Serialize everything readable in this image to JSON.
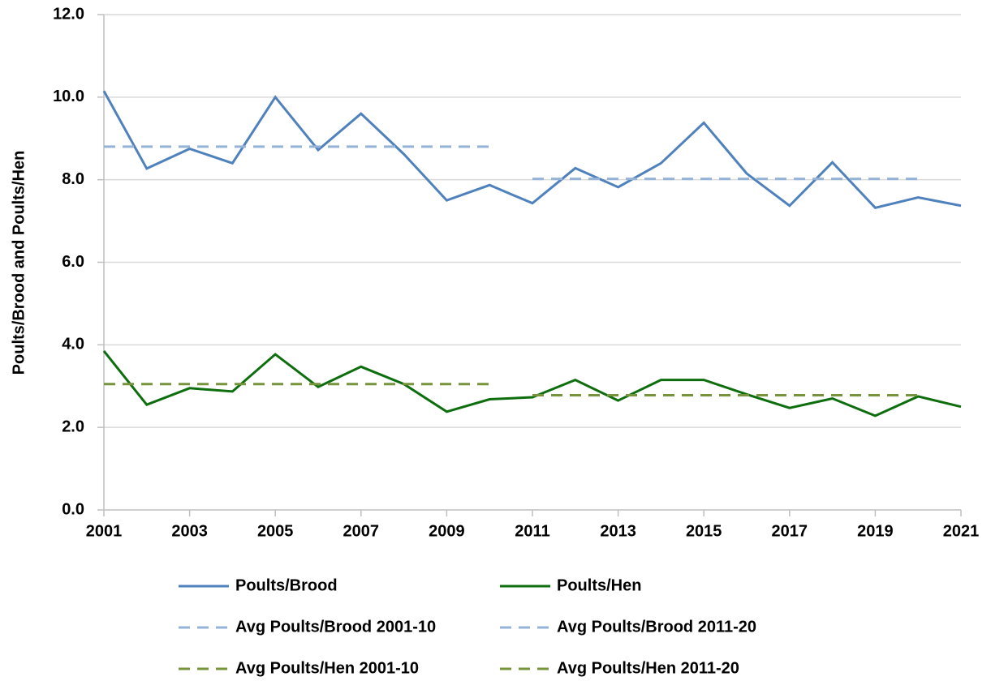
{
  "chart_data": {
    "type": "line",
    "y_label": "Poults/Brood and Poults/Hen",
    "x": [
      2001,
      2002,
      2003,
      2004,
      2005,
      2006,
      2007,
      2008,
      2009,
      2010,
      2011,
      2012,
      2013,
      2014,
      2015,
      2016,
      2017,
      2018,
      2019,
      2020,
      2021
    ],
    "xlim": [
      2001,
      2021
    ],
    "xticks": [
      2001,
      2003,
      2005,
      2007,
      2009,
      2011,
      2013,
      2015,
      2017,
      2019,
      2021
    ],
    "ylim": [
      0,
      12
    ],
    "yticks": [
      {
        "value": 0,
        "label": "0.0"
      },
      {
        "value": 2,
        "label": "2.0"
      },
      {
        "value": 4,
        "label": "4.0"
      },
      {
        "value": 6,
        "label": "6.0"
      },
      {
        "value": 8,
        "label": "8.0"
      },
      {
        "value": 10,
        "label": "10.0"
      },
      {
        "value": 12,
        "label": "12.0"
      }
    ],
    "grid": true,
    "legend": "bottom",
    "series": [
      {
        "name": "Poults/Brood",
        "color": "#4f81bd",
        "style": "solid",
        "values": [
          10.15,
          8.27,
          8.75,
          8.4,
          10.0,
          8.72,
          9.6,
          8.62,
          7.5,
          7.87,
          7.43,
          8.28,
          7.82,
          8.4,
          9.38,
          8.15,
          7.37,
          8.42,
          7.32,
          7.57,
          7.37
        ]
      },
      {
        "name": "Poults/Hen",
        "color": "#0e6e0e",
        "style": "solid",
        "values": [
          3.85,
          2.55,
          2.95,
          2.87,
          3.77,
          2.98,
          3.47,
          3.05,
          2.38,
          2.68,
          2.73,
          3.15,
          2.65,
          3.15,
          3.15,
          2.8,
          2.47,
          2.7,
          2.28,
          2.75,
          2.5
        ]
      },
      {
        "name": "Avg Poults/Brood 2001-10",
        "color": "#95b3d7",
        "style": "dashed",
        "values": [
          8.8,
          8.8,
          8.8,
          8.8,
          8.8,
          8.8,
          8.8,
          8.8,
          8.8,
          8.8,
          null,
          null,
          null,
          null,
          null,
          null,
          null,
          null,
          null,
          null,
          null
        ]
      },
      {
        "name": "Avg Poults/Brood 2011-20",
        "color": "#95b3d7",
        "style": "dashed",
        "values": [
          null,
          null,
          null,
          null,
          null,
          null,
          null,
          null,
          null,
          null,
          8.02,
          8.02,
          8.02,
          8.02,
          8.02,
          8.02,
          8.02,
          8.02,
          8.02,
          8.02,
          null
        ]
      },
      {
        "name": "Avg Poults/Hen 2001-10",
        "color": "#77933c",
        "style": "dashed",
        "values": [
          3.05,
          3.05,
          3.05,
          3.05,
          3.05,
          3.05,
          3.05,
          3.05,
          3.05,
          3.05,
          null,
          null,
          null,
          null,
          null,
          null,
          null,
          null,
          null,
          null,
          null
        ]
      },
      {
        "name": "Avg Poults/Hen 2011-20",
        "color": "#77933c",
        "style": "dashed",
        "values": [
          null,
          null,
          null,
          null,
          null,
          null,
          null,
          null,
          null,
          null,
          2.78,
          2.78,
          2.78,
          2.78,
          2.78,
          2.78,
          2.78,
          2.78,
          2.78,
          2.78,
          null
        ]
      }
    ]
  }
}
